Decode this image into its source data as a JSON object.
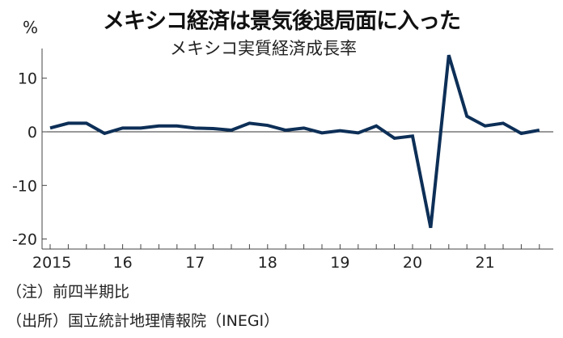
{
  "chart_data": {
    "type": "line",
    "title": "メキシコ経済は景気後退局面に入った",
    "subtitle": "メキシコ実質経済成長率",
    "ylabel": "%",
    "ylim": [
      -21,
      17
    ],
    "yticks": [
      10,
      0,
      -10,
      -20
    ],
    "ytick_labels": [
      "10",
      "0",
      "-10",
      "-20"
    ],
    "xtick_labels": [
      "2015",
      "16",
      "17",
      "18",
      "19",
      "20",
      "21"
    ],
    "x": [
      "2015Q1",
      "2015Q2",
      "2015Q3",
      "2015Q4",
      "2016Q1",
      "2016Q2",
      "2016Q3",
      "2016Q4",
      "2017Q1",
      "2017Q2",
      "2017Q3",
      "2017Q4",
      "2018Q1",
      "2018Q2",
      "2018Q3",
      "2018Q4",
      "2019Q1",
      "2019Q2",
      "2019Q3",
      "2019Q4",
      "2020Q1",
      "2020Q2",
      "2020Q3",
      "2020Q4",
      "2021Q1",
      "2021Q2",
      "2021Q3",
      "2021Q4"
    ],
    "series": [
      {
        "values": [
          0.7,
          1.6,
          1.6,
          -0.3,
          0.7,
          0.7,
          1.1,
          1.1,
          0.7,
          0.6,
          0.3,
          1.6,
          1.2,
          0.3,
          0.7,
          -0.2,
          0.2,
          -0.2,
          1.1,
          -1.2,
          -0.8,
          -17.9,
          14.3,
          2.9,
          1.1,
          1.6,
          -0.3,
          0.3
        ],
        "color": "#0d2f57"
      }
    ],
    "grid": false,
    "zero_line": true
  },
  "notes": {
    "note1": "（注）前四半期比",
    "source": "（出所）国立統計地理情報院（INEGI）"
  }
}
